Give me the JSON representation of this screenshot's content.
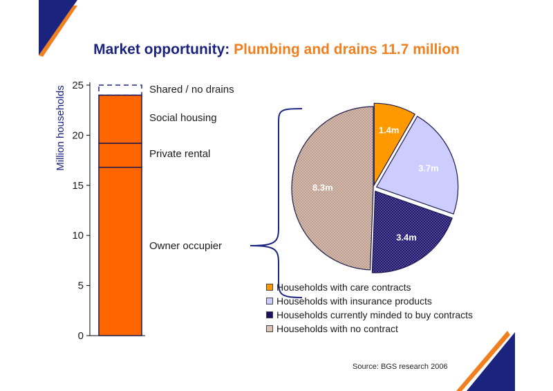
{
  "title": {
    "prefix": "Market opportunity:",
    "highlight": "Plumbing and drains 11.7 million"
  },
  "source": "Source: BGS research 2006",
  "chart_data": [
    {
      "type": "bar",
      "stacked": true,
      "ylabel": "Million households",
      "ylim": [
        0,
        25
      ],
      "yticks": [
        "0",
        "5",
        "10",
        "15",
        "20",
        "25"
      ],
      "segments": [
        {
          "name": "Owner occupier",
          "value": 16.8
        },
        {
          "name": "Private rental",
          "value": 2.4
        },
        {
          "name": "Social housing",
          "value": 4.8
        },
        {
          "name": "Shared / no drains",
          "value": 1.0
        }
      ],
      "colors": {
        "bar": "#ff6600",
        "dashed": "#1a237e"
      }
    },
    {
      "type": "pie",
      "slices": [
        {
          "label": "1.4m",
          "value": 1.4,
          "name": "Households with care contracts",
          "color": "#ff9900"
        },
        {
          "label": "3.7m",
          "value": 3.7,
          "name": "Households with insurance products",
          "color": "#ccccff"
        },
        {
          "label": "3.4m",
          "value": 3.4,
          "name": "Households currently minded to buy contracts",
          "color": "#2a1a6e"
        },
        {
          "label": "8.3m",
          "value": 8.3,
          "name": "Households with no contract",
          "color": "#c8a99b"
        }
      ],
      "legend_position": "bottom"
    }
  ]
}
